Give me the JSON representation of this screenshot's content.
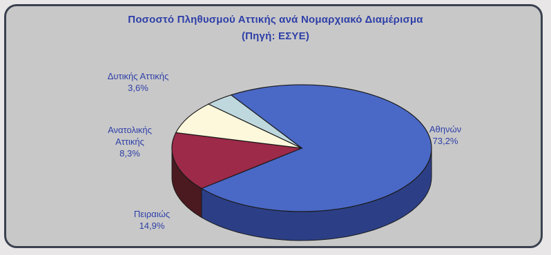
{
  "chart_data": {
    "type": "pie",
    "title": "Ποσοστό Πληθυσμού Αττικής ανά Νομαρχιακό Διαμέρισμα",
    "subtitle": "(Πηγή: ΕΣΥΕ)",
    "slices": [
      {
        "label_lines": [
          "Αθηνών"
        ],
        "value": 73.2,
        "value_text": "73,2%",
        "color": "#4a68c6",
        "side": "#2c3f86"
      },
      {
        "label_lines": [
          "Πειραιώς"
        ],
        "value": 14.9,
        "value_text": "14,9%",
        "color": "#9c2a48",
        "side": "#4a1a20"
      },
      {
        "label_lines": [
          "Ανατολικής",
          "Αττικής"
        ],
        "value": 8.3,
        "value_text": "8,3%",
        "color": "#fdf8dc",
        "side": "#cfc7a0"
      },
      {
        "label_lines": [
          "Δυτικής Αττικής"
        ],
        "value": 3.6,
        "value_text": "3,6%",
        "color": "#bed8de",
        "side": "#7e9ca2"
      }
    ]
  }
}
